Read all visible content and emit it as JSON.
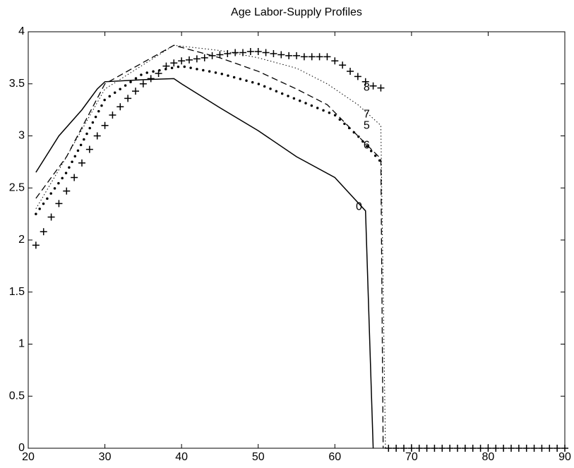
{
  "chart_data": {
    "type": "line",
    "title": "Age Labor-Supply Profiles",
    "xlim": [
      20,
      90
    ],
    "ylim": [
      0,
      4
    ],
    "xticks": [
      20,
      30,
      40,
      50,
      60,
      70,
      80,
      90
    ],
    "yticks": [
      0,
      0.5,
      1,
      1.5,
      2,
      2.5,
      3,
      3.5,
      4
    ],
    "grid": false,
    "series": [
      {
        "name": "0",
        "color": "#000000",
        "style": "solid",
        "x": [
          21,
          24,
          27,
          29,
          30,
          35,
          39,
          40,
          45,
          50,
          55,
          60,
          64,
          65
        ],
        "values": [
          2.65,
          3.0,
          3.25,
          3.45,
          3.52,
          3.54,
          3.55,
          3.5,
          3.27,
          3.05,
          2.8,
          2.6,
          2.28,
          0
        ]
      },
      {
        "name": "5",
        "color": "#000000",
        "style": "dots",
        "x": [
          21,
          25,
          30,
          35,
          40,
          45,
          50,
          55,
          60,
          63,
          66
        ],
        "values": [
          2.25,
          2.65,
          3.35,
          3.6,
          3.67,
          3.6,
          3.5,
          3.35,
          3.2,
          3.0,
          2.75
        ]
      },
      {
        "name": "6",
        "color": "#000000",
        "style": "dashed",
        "x": [
          21,
          25,
          30,
          39,
          45,
          50,
          55,
          59,
          63,
          66,
          66.3
        ],
        "values": [
          2.4,
          2.8,
          3.5,
          3.87,
          3.75,
          3.62,
          3.45,
          3.3,
          3.0,
          2.78,
          0
        ]
      },
      {
        "name": "7",
        "color": "#000000",
        "style": "dotted",
        "x": [
          21,
          25,
          30,
          39,
          45,
          50,
          55,
          59,
          63,
          66,
          66.6
        ],
        "values": [
          2.3,
          2.8,
          3.45,
          3.87,
          3.82,
          3.75,
          3.65,
          3.5,
          3.3,
          3.1,
          0
        ]
      },
      {
        "name": "8",
        "color": "#000000",
        "style": "plus",
        "x": [
          21,
          22,
          23,
          24,
          25,
          26,
          27,
          28,
          29,
          30,
          31,
          32,
          33,
          34,
          35,
          36,
          37,
          38,
          39,
          40,
          41,
          42,
          43,
          44,
          45,
          46,
          47,
          48,
          49,
          50,
          51,
          52,
          53,
          54,
          55,
          56,
          57,
          58,
          59,
          60,
          61,
          62,
          63,
          64,
          65,
          66,
          67,
          68,
          69,
          70,
          71,
          72,
          73,
          74,
          75,
          76,
          77,
          78,
          79,
          80,
          81,
          82,
          83,
          84,
          85,
          86,
          87,
          88,
          89,
          90
        ],
        "values": [
          1.95,
          2.08,
          2.22,
          2.35,
          2.47,
          2.6,
          2.74,
          2.87,
          3.0,
          3.1,
          3.2,
          3.28,
          3.36,
          3.43,
          3.5,
          3.55,
          3.6,
          3.67,
          3.7,
          3.72,
          3.73,
          3.74,
          3.75,
          3.77,
          3.78,
          3.79,
          3.8,
          3.8,
          3.81,
          3.81,
          3.8,
          3.79,
          3.78,
          3.77,
          3.77,
          3.76,
          3.76,
          3.76,
          3.76,
          3.72,
          3.68,
          3.62,
          3.57,
          3.52,
          3.48,
          3.46,
          0,
          0,
          0,
          0,
          0,
          0,
          0,
          0,
          0,
          0,
          0,
          0,
          0,
          0,
          0,
          0,
          0,
          0,
          0,
          0,
          0,
          0,
          0,
          0
        ]
      }
    ]
  }
}
